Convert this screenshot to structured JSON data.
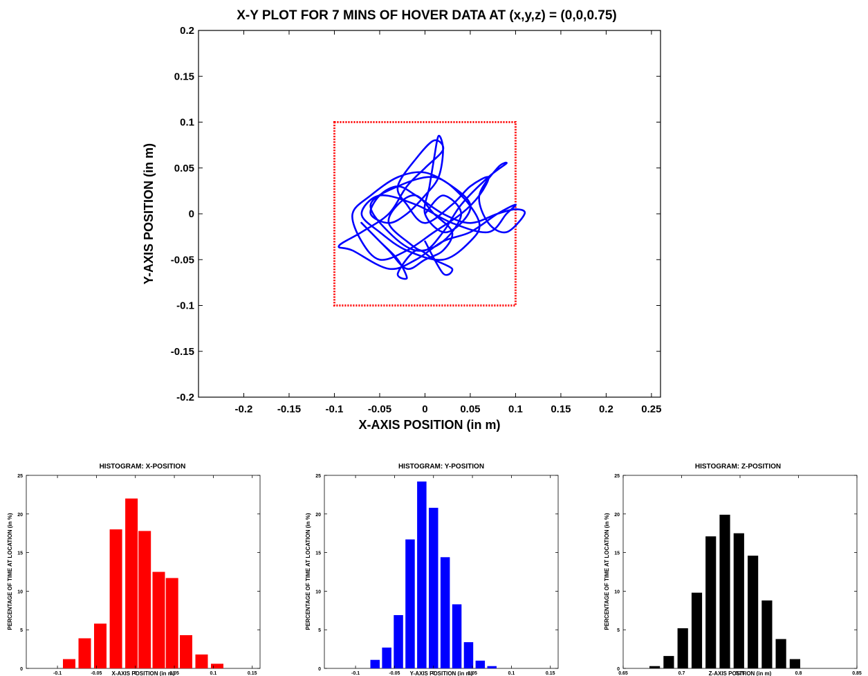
{
  "chart_data": [
    {
      "type": "line",
      "title": "X-Y PLOT FOR 7 MINS OF HOVER DATA AT (x,y,z) = (0,0,0.75)",
      "xlabel": "X-AXIS POSITION (in m)",
      "ylabel": "Y-AXIS POSITION (in m)",
      "xlim": [
        -0.25,
        0.26
      ],
      "ylim": [
        -0.2,
        0.2
      ],
      "xticks": [
        "-0.2",
        "-0.15",
        "-0.1",
        "-0.05",
        "0",
        "0.05",
        "0.1",
        "0.15",
        "0.2",
        "0.25"
      ],
      "xtick_values": [
        -0.2,
        -0.15,
        -0.1,
        -0.05,
        0,
        0.05,
        0.1,
        0.15,
        0.2,
        0.25
      ],
      "yticks": [
        "0.2",
        "0.15",
        "0.1",
        "0.05",
        "0",
        "-0.05",
        "-0.1",
        "-0.15",
        "-0.2"
      ],
      "ytick_values": [
        0.2,
        0.15,
        0.1,
        0.05,
        0,
        -0.05,
        -0.1,
        -0.15,
        -0.2
      ],
      "grid": false,
      "boundary": {
        "x": [
          -0.1,
          0.1
        ],
        "y": [
          -0.1,
          0.1
        ],
        "color": "#ff0000",
        "style": "dotted"
      },
      "trajectory_color": "#0000ff",
      "trajectory": {
        "x": [
          0.0,
          0.02,
          0.04,
          0.02,
          -0.01,
          -0.04,
          -0.06,
          -0.03,
          0.01,
          0.04,
          0.06,
          0.05,
          0.02,
          -0.02,
          -0.05,
          -0.07,
          -0.05,
          -0.01,
          0.03,
          0.07,
          0.09,
          0.1,
          0.08,
          0.05,
          0.02,
          -0.01,
          -0.04,
          -0.08,
          -0.095,
          -0.07,
          -0.04,
          -0.02,
          0.0,
          0.02,
          0.01,
          -0.01,
          -0.03,
          -0.02,
          0.0,
          0.03,
          0.05,
          0.07,
          0.06,
          0.04,
          0.01,
          -0.02,
          -0.05,
          -0.07,
          -0.08,
          -0.06,
          -0.03,
          0.0,
          0.03,
          0.05,
          0.04,
          0.02,
          0.0,
          0.005,
          0.01,
          0.015,
          0.02,
          0.015,
          0.0,
          -0.02,
          -0.04,
          -0.06,
          -0.05,
          -0.03,
          -0.01,
          0.02,
          0.05,
          0.08,
          0.1,
          0.11,
          0.09,
          0.07,
          0.06,
          0.08,
          0.09,
          0.07,
          0.04,
          0.02,
          0.0,
          -0.02,
          -0.04,
          -0.03,
          -0.01,
          0.01,
          0.03,
          0.02,
          0.0,
          -0.02,
          -0.04,
          -0.06,
          -0.07,
          -0.05,
          -0.03,
          -0.02,
          -0.03,
          -0.01,
          0.01,
          0.03,
          0.02,
          0.0
        ],
        "y": [
          0.0,
          0.02,
          0.0,
          -0.03,
          -0.04,
          -0.02,
          0.01,
          0.03,
          0.04,
          0.02,
          -0.01,
          -0.03,
          -0.05,
          -0.04,
          -0.02,
          0.0,
          0.02,
          0.01,
          -0.01,
          -0.02,
          0.0,
          0.01,
          0.0,
          -0.02,
          -0.03,
          -0.05,
          -0.06,
          -0.04,
          -0.035,
          -0.02,
          0.0,
          0.03,
          0.05,
          0.07,
          0.08,
          0.06,
          0.03,
          0.01,
          -0.01,
          0.01,
          0.03,
          0.04,
          0.02,
          0.0,
          -0.02,
          -0.04,
          -0.05,
          -0.03,
          0.0,
          0.02,
          0.04,
          0.045,
          0.03,
          0.01,
          -0.01,
          -0.02,
          0.0,
          0.03,
          0.06,
          0.085,
          0.07,
          0.04,
          0.02,
          0.0,
          -0.01,
          0.0,
          0.02,
          0.03,
          0.02,
          0.0,
          -0.01,
          0.0,
          0.005,
          0.0,
          -0.02,
          -0.01,
          0.02,
          0.05,
          0.055,
          0.04,
          0.01,
          -0.02,
          -0.04,
          -0.03,
          -0.01,
          0.01,
          0.02,
          0.0,
          -0.02,
          -0.04,
          -0.05,
          -0.06,
          -0.04,
          -0.02,
          -0.01,
          -0.03,
          -0.05,
          -0.07,
          -0.065,
          -0.04,
          -0.05,
          -0.06,
          -0.065,
          -0.03
        ]
      }
    },
    {
      "type": "bar",
      "title": "HISTOGRAM: X-POSITION",
      "xlabel": "X-AXIS POSITION (in m)",
      "ylabel": "PERCENTAGE OF TIME AT LOCATION (in %)",
      "color": "#ff0000",
      "xlim": [
        -0.14,
        0.16
      ],
      "ylim": [
        0,
        25
      ],
      "xticks": [
        "-0.1",
        "-0.05",
        "0",
        "0.05",
        "0.1",
        "0.15"
      ],
      "xtick_values": [
        -0.1,
        -0.05,
        0,
        0.05,
        0.1,
        0.15
      ],
      "yticks": [
        "0",
        "5",
        "10",
        "15",
        "20",
        "25"
      ],
      "ytick_values": [
        0,
        5,
        10,
        15,
        20,
        25
      ],
      "bin_width": 0.016,
      "bins": [
        -0.085,
        -0.065,
        -0.045,
        -0.025,
        -0.005,
        0.012,
        0.03,
        0.047,
        0.065,
        0.085,
        0.105
      ],
      "values": [
        1.2,
        3.9,
        5.8,
        18.0,
        22.0,
        17.8,
        12.5,
        11.7,
        4.3,
        1.8,
        0.6
      ]
    },
    {
      "type": "bar",
      "title": "HISTOGRAM: Y-POSITION",
      "xlabel": "Y-AXIS POSITION (in m)",
      "ylabel": "PERCENTAGE OF TIME AT LOCATION (in %)",
      "color": "#0000ff",
      "xlim": [
        -0.14,
        0.16
      ],
      "ylim": [
        0,
        25
      ],
      "xticks": [
        "-0.1",
        "-0.05",
        "0",
        "0.05",
        "0.1",
        "0.15"
      ],
      "xtick_values": [
        -0.1,
        -0.05,
        0,
        0.05,
        0.1,
        0.15
      ],
      "yticks": [
        "0",
        "5",
        "10",
        "15",
        "20",
        "25"
      ],
      "ytick_values": [
        0,
        5,
        10,
        15,
        20,
        25
      ],
      "bin_width": 0.012,
      "bins": [
        -0.075,
        -0.06,
        -0.045,
        -0.03,
        -0.015,
        0.0,
        0.015,
        0.03,
        0.045,
        0.06,
        0.075
      ],
      "values": [
        1.1,
        2.7,
        6.9,
        16.7,
        24.2,
        20.8,
        14.4,
        8.3,
        3.4,
        1.0,
        0.3
      ]
    },
    {
      "type": "bar",
      "title": "HISTOGRAM: Z-POSITION",
      "xlabel": "Z-AXIS POSITION (in m)",
      "ylabel": "PERCENTAGE OF TIME AT LOCATION (in %)",
      "color": "#000000",
      "xlim": [
        0.65,
        0.85
      ],
      "ylim": [
        0,
        25
      ],
      "xticks": [
        "0.65",
        "0.7",
        "0.75",
        "0.8",
        "0.85"
      ],
      "xtick_values": [
        0.65,
        0.7,
        0.75,
        0.8,
        0.85
      ],
      "yticks": [
        "0",
        "5",
        "10",
        "15",
        "20",
        "25"
      ],
      "ytick_values": [
        0,
        5,
        10,
        15,
        20,
        25
      ],
      "bin_width": 0.009,
      "bins": [
        0.677,
        0.689,
        0.701,
        0.713,
        0.725,
        0.737,
        0.749,
        0.761,
        0.773,
        0.785,
        0.797
      ],
      "values": [
        0.3,
        1.6,
        5.2,
        9.8,
        17.1,
        19.9,
        17.5,
        14.6,
        8.8,
        3.8,
        1.2
      ]
    }
  ]
}
